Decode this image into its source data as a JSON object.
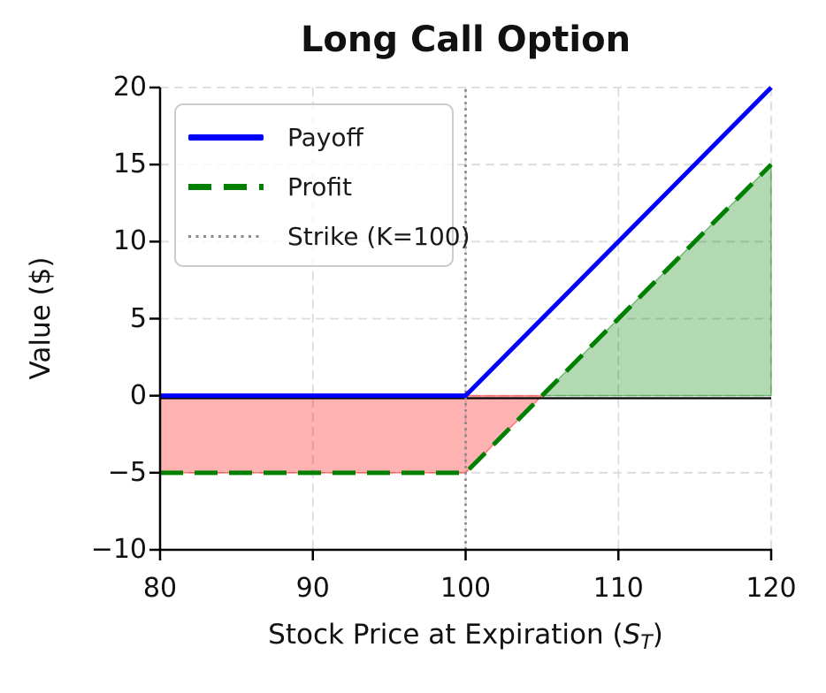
{
  "title": "Long Call Option",
  "axes": {
    "y_label": "Value ($)",
    "x_label_prefix": "Stock Price at Expiration (",
    "x_label_symbol": "S",
    "x_label_subscript": "T",
    "x_label_suffix": ")",
    "x_tick_labels": [
      "80",
      "90",
      "100",
      "110",
      "120"
    ],
    "y_tick_labels": [
      "−10",
      "−5",
      "0",
      "5",
      "10",
      "15",
      "20"
    ]
  },
  "legend": {
    "items": [
      {
        "label": "Payoff",
        "style": "solid",
        "color": "#0000ff"
      },
      {
        "label": "Profit",
        "style": "dashed",
        "color": "#008000"
      },
      {
        "label": "Strike (K=100)",
        "style": "dotted",
        "color": "#8a8a8a"
      }
    ]
  },
  "chart_data": {
    "type": "line",
    "title": "Long Call Option",
    "xlabel": "Stock Price at Expiration (S_T)",
    "ylabel": "Value ($)",
    "xlim": [
      80,
      120
    ],
    "ylim": [
      -10,
      20
    ],
    "x_ticks": [
      80,
      90,
      100,
      110,
      120
    ],
    "y_ticks": [
      -10,
      -5,
      0,
      5,
      10,
      15,
      20
    ],
    "grid": true,
    "grid_style": "dashed",
    "legend_position": "upper left",
    "strike": 100,
    "premium": 5,
    "breakeven": 105,
    "axhline_y": 0,
    "series": [
      {
        "name": "Payoff",
        "color": "#0000ff",
        "style": "solid",
        "linewidth": 5,
        "x": [
          80,
          100,
          120
        ],
        "y": [
          0,
          0,
          20
        ]
      },
      {
        "name": "Profit",
        "color": "#008000",
        "style": "dashed",
        "linewidth": 5,
        "x": [
          80,
          100,
          120
        ],
        "y": [
          -5,
          -5,
          15
        ]
      },
      {
        "name": "Strike (K=100)",
        "color": "#8a8a8a",
        "style": "dotted",
        "linewidth": 2.8,
        "x": [
          100,
          100
        ],
        "y": [
          -10,
          20
        ]
      }
    ],
    "fills": [
      {
        "name": "loss-region",
        "color": "rgba(255,0,0,0.30)",
        "edge": "rgba(255,0,0,0.45)",
        "points": [
          [
            80,
            0
          ],
          [
            105,
            0
          ],
          [
            100,
            -5
          ],
          [
            80,
            -5
          ]
        ]
      },
      {
        "name": "gain-region",
        "color": "rgba(0,128,0,0.30)",
        "edge": "rgba(0,128,0,0.45)",
        "points": [
          [
            105,
            0
          ],
          [
            120,
            0
          ],
          [
            120,
            15
          ]
        ]
      }
    ],
    "colors": {
      "payoff": "#0000ff",
      "profit": "#008000",
      "strike_line": "#8a8a8a",
      "grid": "#dcdcdc",
      "spine": "#000000",
      "loss_fill": "rgba(255,0,0,0.30)",
      "gain_fill": "rgba(0,128,0,0.30)"
    }
  }
}
